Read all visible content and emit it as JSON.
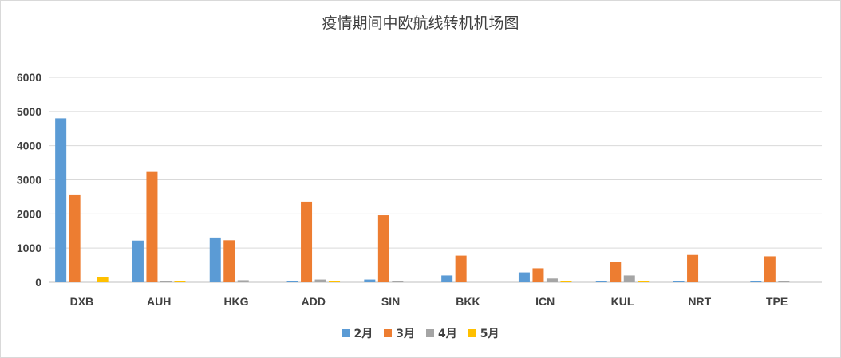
{
  "chart_data": {
    "type": "bar",
    "title": "疫情期间中欧航线转机机场图",
    "categories": [
      "DXB",
      "AUH",
      "HKG",
      "ADD",
      "SIN",
      "BKK",
      "ICN",
      "KUL",
      "NRT",
      "TPE"
    ],
    "series": [
      {
        "name": "2月",
        "color": "#5B9BD5",
        "values": [
          4800,
          1220,
          1310,
          30,
          80,
          200,
          290,
          40,
          30,
          30
        ]
      },
      {
        "name": "3月",
        "color": "#ED7D31",
        "values": [
          2570,
          3230,
          1230,
          2360,
          1960,
          780,
          410,
          600,
          800,
          760
        ]
      },
      {
        "name": "4月",
        "color": "#A5A5A5",
        "values": [
          0,
          30,
          60,
          80,
          30,
          0,
          110,
          200,
          0,
          30
        ]
      },
      {
        "name": "5月",
        "color": "#FFC000",
        "values": [
          150,
          40,
          0,
          30,
          0,
          0,
          30,
          30,
          0,
          0
        ]
      }
    ],
    "yticks": [
      "0",
      "1000",
      "2000",
      "3000",
      "4000",
      "5000",
      "6000"
    ],
    "ylim": [
      0,
      6000
    ],
    "grid": true,
    "legend_position": "bottom"
  }
}
